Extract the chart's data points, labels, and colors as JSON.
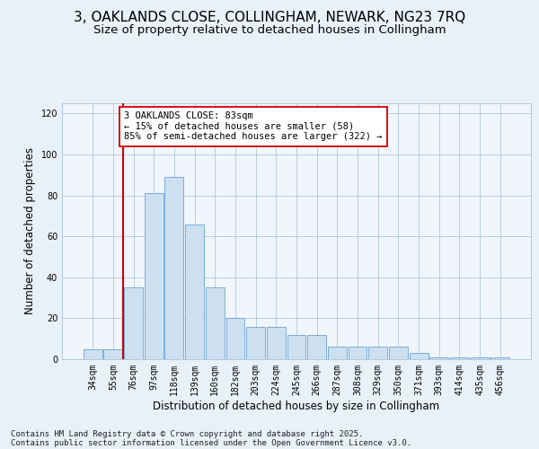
{
  "title_line1": "3, OAKLANDS CLOSE, COLLINGHAM, NEWARK, NG23 7RQ",
  "title_line2": "Size of property relative to detached houses in Collingham",
  "xlabel": "Distribution of detached houses by size in Collingham",
  "ylabel": "Number of detached properties",
  "categories": [
    "34sqm",
    "55sqm",
    "76sqm",
    "97sqm",
    "118sqm",
    "139sqm",
    "160sqm",
    "182sqm",
    "203sqm",
    "224sqm",
    "245sqm",
    "266sqm",
    "287sqm",
    "308sqm",
    "329sqm",
    "350sqm",
    "371sqm",
    "393sqm",
    "414sqm",
    "435sqm",
    "456sqm"
  ],
  "values": [
    5,
    5,
    35,
    81,
    89,
    66,
    35,
    20,
    16,
    16,
    12,
    12,
    6,
    6,
    6,
    6,
    3,
    1,
    1,
    1,
    1
  ],
  "bar_color": "#cce0f0",
  "bar_edge_color": "#6ca3d4",
  "vline_color": "#cc0000",
  "vline_x_idx": 1.5,
  "annotation_text": "3 OAKLANDS CLOSE: 83sqm\n← 15% of detached houses are smaller (58)\n85% of semi-detached houses are larger (322) →",
  "ylim": [
    0,
    125
  ],
  "yticks": [
    0,
    20,
    40,
    60,
    80,
    100,
    120
  ],
  "bg_color": "#e8f0f8",
  "plot_bg_color": "#f0f6fc",
  "title_fontsize": 11,
  "subtitle_fontsize": 9.5,
  "axis_label_fontsize": 8.5,
  "tick_fontsize": 7,
  "footer_fontsize": 6.5,
  "footer_line1": "Contains HM Land Registry data © Crown copyright and database right 2025.",
  "footer_line2": "Contains public sector information licensed under the Open Government Licence v3.0."
}
